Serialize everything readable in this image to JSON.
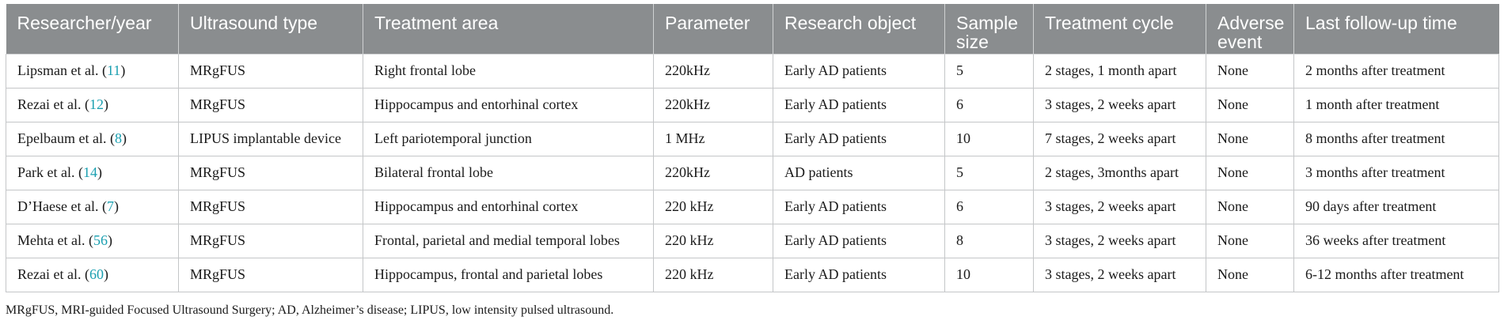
{
  "headers": [
    "Researcher/year",
    "Ultrasound type",
    "Treatment area",
    "Parameter",
    "Research object",
    "Sample size",
    "Treatment cycle",
    "Adverse event",
    "Last follow-up time"
  ],
  "rows": [
    {
      "author": "Lipsman et al. (",
      "ref": "11",
      "close": ")",
      "type": "MRgFUS",
      "area": "Right frontal lobe",
      "param": "220kHz",
      "object": "Early AD patients",
      "size": "5",
      "cycle": "2 stages, 1 month apart",
      "adverse": "None",
      "followup": "2 months after treatment"
    },
    {
      "author": "Rezai et al. (",
      "ref": "12",
      "close": ")",
      "type": "MRgFUS",
      "area": "Hippocampus and entorhinal cortex",
      "param": "220kHz",
      "object": "Early AD patients",
      "size": "6",
      "cycle": "3 stages, 2 weeks apart",
      "adverse": "None",
      "followup": "1 month after treatment"
    },
    {
      "author": "Epelbaum et al. (",
      "ref": "8",
      "close": ")",
      "type": "LIPUS implantable device",
      "area": "Left pariotemporal junction",
      "param": "1 MHz",
      "object": "Early AD patients",
      "size": "10",
      "cycle": "7 stages, 2 weeks apart",
      "adverse": "None",
      "followup": "8 months after treatment"
    },
    {
      "author": "Park et al. (",
      "ref": "14",
      "close": ")",
      "type": "MRgFUS",
      "area": "Bilateral frontal lobe",
      "param": "220kHz",
      "object": "AD patients",
      "size": "5",
      "cycle": "2 stages, 3months apart",
      "adverse": "None",
      "followup": "3 months after treatment"
    },
    {
      "author": "D’Haese et al. (",
      "ref": "7",
      "close": ")",
      "type": "MRgFUS",
      "area": "Hippocampus and entorhinal cortex",
      "param": "220 kHz",
      "object": "Early AD patients",
      "size": "6",
      "cycle": "3 stages, 2 weeks apart",
      "adverse": "None",
      "followup": "90 days after treatment"
    },
    {
      "author": "Mehta et al. (",
      "ref": "56",
      "close": ")",
      "type": "MRgFUS",
      "area": "Frontal, parietal and medial temporal lobes",
      "param": "220 kHz",
      "object": "Early AD patients",
      "size": "8",
      "cycle": "3 stages, 2 weeks apart",
      "adverse": "None",
      "followup": "36 weeks after treatment"
    },
    {
      "author": "Rezai et al. (",
      "ref": "60",
      "close": ")",
      "type": "MRgFUS",
      "area": "Hippocampus, frontal and parietal lobes",
      "param": "220 kHz",
      "object": "Early AD patients",
      "size": "10",
      "cycle": "3 stages, 2 weeks apart",
      "adverse": "None",
      "followup": "6-12 months after treatment"
    }
  ],
  "footnote": "MRgFUS, MRI-guided Focused Ultrasound Surgery; AD, Alzheimer’s disease; LIPUS, low intensity pulsed ultrasound.",
  "colors": {
    "header_bg": "#8a8d8f",
    "ref_link": "#1a9fb0"
  }
}
